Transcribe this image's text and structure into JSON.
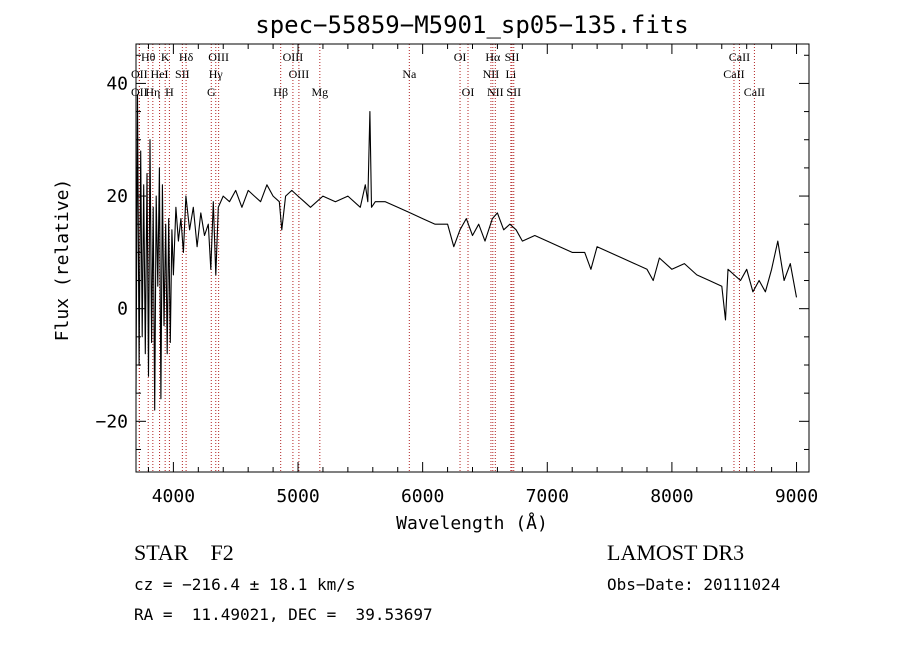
{
  "chart_data": {
    "type": "line",
    "title": "spec−55859−M5901_sp05−135.fits",
    "xlabel": "Wavelength (Å)",
    "ylabel": "Flux (relative)",
    "xlim": [
      3700,
      9100
    ],
    "ylim": [
      -29,
      47
    ],
    "x_ticks": [
      4000,
      5000,
      6000,
      7000,
      8000,
      9000
    ],
    "x_tick_labels": [
      "4000",
      "5000",
      "6000",
      "7000",
      "8000",
      "9000"
    ],
    "y_ticks": [
      -20,
      0,
      20,
      40
    ],
    "y_tick_labels": [
      "−20",
      "0",
      "20",
      "40"
    ],
    "series": [
      {
        "name": "flux",
        "x": [
          3700,
          3712,
          3725,
          3738,
          3750,
          3762,
          3775,
          3788,
          3800,
          3812,
          3825,
          3838,
          3850,
          3862,
          3875,
          3888,
          3900,
          3912,
          3925,
          3938,
          3950,
          3962,
          3975,
          3988,
          4000,
          4020,
          4040,
          4060,
          4080,
          4100,
          4130,
          4160,
          4190,
          4220,
          4250,
          4280,
          4300,
          4320,
          4340,
          4360,
          4400,
          4450,
          4500,
          4550,
          4600,
          4650,
          4700,
          4750,
          4800,
          4850,
          4870,
          4900,
          4950,
          5000,
          5050,
          5100,
          5200,
          5300,
          5400,
          5500,
          5540,
          5560,
          5577,
          5590,
          5620,
          5700,
          5800,
          5900,
          6000,
          6100,
          6200,
          6250,
          6300,
          6350,
          6400,
          6450,
          6500,
          6560,
          6600,
          6650,
          6700,
          6750,
          6800,
          6900,
          7000,
          7100,
          7200,
          7300,
          7350,
          7400,
          7500,
          7600,
          7700,
          7800,
          7850,
          7900,
          8000,
          8100,
          8200,
          8300,
          8400,
          8430,
          8450,
          8500,
          8550,
          8600,
          8650,
          8700,
          8750,
          8800,
          8850,
          8900,
          8950,
          9000
        ],
        "y": [
          -15,
          38,
          -10,
          28,
          -5,
          22,
          -8,
          24,
          -12,
          30,
          -6,
          18,
          -18,
          20,
          4,
          25,
          -16,
          22,
          -3,
          15,
          -8,
          16,
          -6,
          14,
          6,
          18,
          12,
          16,
          10,
          20,
          14,
          18,
          11,
          17,
          13,
          15,
          7,
          19,
          6,
          18,
          20,
          19,
          21,
          18,
          21,
          20,
          19,
          22,
          20,
          19,
          14,
          20,
          21,
          20,
          19,
          18,
          20,
          19,
          20,
          18,
          22,
          19,
          35,
          18,
          19,
          19,
          18,
          17,
          16,
          15,
          15,
          11,
          14,
          16,
          13,
          15,
          12,
          16,
          17,
          14,
          15,
          14,
          12,
          13,
          12,
          11,
          10,
          10,
          7,
          11,
          10,
          9,
          8,
          7,
          5,
          9,
          7,
          8,
          6,
          5,
          4,
          -2,
          7,
          6,
          5,
          7,
          3,
          5,
          3,
          7,
          12,
          5,
          8,
          2
        ]
      }
    ],
    "emission_lines": [
      {
        "name": "Hθ",
        "x": 3798,
        "row": 0
      },
      {
        "name": "K",
        "x": 3934,
        "row": 0
      },
      {
        "name": "Hδ",
        "x": 4102,
        "row": 0
      },
      {
        "name": "OIII",
        "x": 4363,
        "row": 0
      },
      {
        "name": "OIII",
        "x": 4959,
        "row": 0
      },
      {
        "name": "OI",
        "x": 6300,
        "row": 0
      },
      {
        "name": "Hα",
        "x": 6563,
        "row": 0
      },
      {
        "name": "SII",
        "x": 6717,
        "row": 0
      },
      {
        "name": "CaII",
        "x": 8542,
        "row": 0
      },
      {
        "name": "OII",
        "x": 3727,
        "row": 1
      },
      {
        "name": "HeI",
        "x": 3889,
        "row": 1
      },
      {
        "name": "SII",
        "x": 4072,
        "row": 1
      },
      {
        "name": "Hγ",
        "x": 4340,
        "row": 1
      },
      {
        "name": "OIII",
        "x": 5007,
        "row": 1
      },
      {
        "name": "Na",
        "x": 5893,
        "row": 1
      },
      {
        "name": "NII",
        "x": 6548,
        "row": 1
      },
      {
        "name": "Li",
        "x": 6708,
        "row": 1
      },
      {
        "name": "CaII",
        "x": 8498,
        "row": 1
      },
      {
        "name": "OII",
        "x": 3727,
        "row": 2
      },
      {
        "name": "Hη",
        "x": 3835,
        "row": 2
      },
      {
        "name": "H",
        "x": 3968,
        "row": 2
      },
      {
        "name": "G",
        "x": 4304,
        "row": 2
      },
      {
        "name": "Hβ",
        "x": 4861,
        "row": 2
      },
      {
        "name": "Mg",
        "x": 5175,
        "row": 2
      },
      {
        "name": "OI",
        "x": 6364,
        "row": 2
      },
      {
        "name": "NII",
        "x": 6583,
        "row": 2
      },
      {
        "name": "SII",
        "x": 6731,
        "row": 2
      },
      {
        "name": "CaII",
        "x": 8662,
        "row": 2
      }
    ]
  },
  "info": {
    "class": "STAR    F2",
    "survey": "LAMOST DR3",
    "cz": "cz = −216.4 ± 18.1 km/s",
    "obs_date": "Obs−Date: 20111024",
    "coords": "RA =  11.49021, DEC =  39.53697"
  },
  "colors": {
    "line_marker": "#b22222",
    "spectrum": "#000000"
  }
}
